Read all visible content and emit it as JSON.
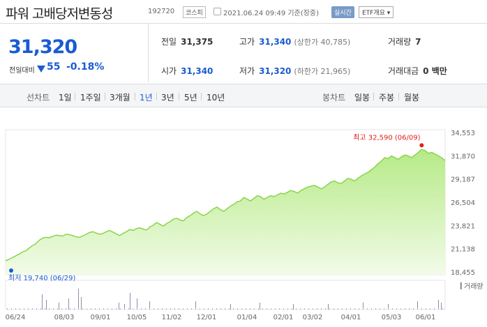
{
  "header": {
    "stock_name": "파워 고배당저변동성",
    "stock_code": "192720",
    "market": "코스피",
    "datetime": "2021.06.24 09:49 기준(장중)",
    "realtime_label": "실시간",
    "etf_label": "ETF개요 ▾"
  },
  "price": {
    "current": "31,320",
    "change_label": "전일대비",
    "change_value": "55",
    "change_pct": "-0.18%"
  },
  "info": {
    "prev_close": {
      "label": "전일",
      "value": "31,375"
    },
    "high": {
      "label": "고가",
      "value": "31,340",
      "sub": "(상한가 40,785)"
    },
    "volume": {
      "label": "거래량",
      "value": "7"
    },
    "open": {
      "label": "시가",
      "value": "31,340"
    },
    "low": {
      "label": "저가",
      "value": "31,320",
      "sub": "(하한가 21,965)"
    },
    "amount": {
      "label": "거래대금",
      "value": "0 백만"
    }
  },
  "period_bar": {
    "line_label": "선차트",
    "line_items": [
      "1일",
      "1주일",
      "3개월",
      "1년",
      "3년",
      "5년",
      "10년"
    ],
    "active": "1년",
    "candle_label": "봉차트",
    "candle_items": [
      "일봉",
      "주봉",
      "월봉"
    ]
  },
  "colors": {
    "accent_blue": "#1a5bd1",
    "line_green": "#8ad44c",
    "fill_green_top": "#c6f0a0",
    "high_red": "#e0201c"
  },
  "chart_data": {
    "type": "area",
    "y_ticks": [
      "34,553",
      "31,870",
      "29,187",
      "26,504",
      "23,821",
      "21,138",
      "18,455"
    ],
    "y_range": [
      18455,
      34553
    ],
    "x_labels": [
      "06/24",
      "08/03",
      "09/01",
      "10/05",
      "11/02",
      "12/01",
      "01/04",
      "02/01",
      "03/02",
      "04/01",
      "05/03",
      "06/01"
    ],
    "high_annotation": "최고 32,590 (06/09)",
    "low_annotation": "최저 19,740 (06/29)",
    "volume_label": "거래량",
    "series": [
      {
        "values": [
          19740,
          19900,
          20100,
          20300,
          20500,
          20750,
          20900,
          21200,
          21500,
          21700,
          22100,
          22350,
          22450,
          22400,
          22550,
          22700,
          22650,
          22600,
          22800,
          22750,
          22650,
          22500,
          22450,
          22600,
          22800,
          23000,
          23100,
          22950,
          22800,
          22900,
          23100,
          23250,
          23050,
          22850,
          22650,
          22900,
          23100,
          23350,
          23250,
          23450,
          23550,
          23400,
          23300,
          23650,
          23850,
          24150,
          23950,
          23750,
          24050,
          24250,
          24550,
          24650,
          24450,
          24350,
          24750,
          24950,
          25250,
          25450,
          25150,
          24950,
          25150,
          25450,
          25750,
          25950,
          25650,
          25450,
          25750,
          26050,
          26250,
          26550,
          26650,
          27050,
          26850,
          26650,
          26950,
          27250,
          27150,
          26850,
          27050,
          27250,
          27150,
          27350,
          27550,
          27450,
          27650,
          27850,
          27750,
          27550,
          27850,
          28050,
          28250,
          28350,
          28450,
          28250,
          28050,
          28250,
          28550,
          28850,
          28950,
          28750,
          28650,
          28950,
          29250,
          29150,
          28950,
          29250,
          29550,
          29750,
          29950,
          30250,
          30550,
          30950,
          31250,
          31650,
          31550,
          31850,
          31650,
          31450,
          31750,
          31950,
          31850,
          31650,
          31950,
          32250,
          32590,
          32450,
          32150,
          32250,
          32050,
          31850,
          31620,
          31320
        ]
      }
    ],
    "volume": [
      1,
      0,
      0,
      0,
      0,
      0,
      0,
      1,
      0,
      0,
      0,
      0,
      0,
      0,
      0,
      0,
      0,
      0,
      0,
      0,
      0,
      0,
      0,
      0,
      0,
      0,
      0,
      0,
      0,
      0,
      0,
      0,
      0,
      0,
      0,
      0,
      0,
      0,
      0,
      0,
      0,
      0,
      0,
      0,
      0,
      0,
      0,
      0,
      0,
      0,
      0,
      0,
      0,
      0,
      0,
      0,
      0,
      0,
      0,
      0,
      0,
      0,
      0,
      0,
      0,
      0,
      0,
      0,
      0,
      0,
      0,
      0,
      0,
      0,
      0,
      0,
      0,
      0,
      0,
      0,
      0,
      0,
      0,
      0,
      0,
      0,
      0,
      0,
      0,
      0,
      0,
      0,
      0,
      0,
      0,
      0,
      0,
      0,
      0,
      0,
      0,
      0,
      0,
      0,
      0,
      0,
      0,
      0,
      0,
      0,
      0,
      0,
      0,
      0,
      0,
      0,
      0,
      0,
      0,
      0,
      0,
      0,
      0,
      0,
      0,
      0,
      0,
      0,
      0,
      0,
      0,
      0
    ]
  }
}
